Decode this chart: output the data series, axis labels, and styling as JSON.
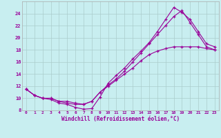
{
  "bg_color": "#c8eef0",
  "grid_color": "#aacccc",
  "line_color": "#990099",
  "xlim": [
    -0.5,
    23.5
  ],
  "ylim": [
    8,
    26
  ],
  "yticks": [
    8,
    10,
    12,
    14,
    16,
    18,
    20,
    22,
    24
  ],
  "xticks": [
    0,
    1,
    2,
    3,
    4,
    5,
    6,
    7,
    8,
    9,
    10,
    11,
    12,
    13,
    14,
    15,
    16,
    17,
    18,
    19,
    20,
    21,
    22,
    23
  ],
  "xlabel": "Windchill (Refroidissement éolien,°C)",
  "line1_x": [
    0,
    1,
    2,
    3,
    4,
    5,
    6,
    7,
    8,
    9,
    10,
    11,
    12,
    13,
    14,
    15,
    16,
    17,
    18,
    19,
    20,
    21,
    22,
    23
  ],
  "line1_y": [
    11.5,
    10.5,
    10.0,
    9.8,
    9.2,
    9.0,
    8.5,
    8.2,
    8.3,
    10.2,
    12.5,
    13.8,
    15.0,
    16.5,
    17.8,
    19.2,
    21.0,
    23.0,
    25.0,
    24.2,
    23.0,
    21.0,
    19.0,
    18.5
  ],
  "line2_x": [
    0,
    1,
    2,
    3,
    4,
    5,
    6,
    7,
    8,
    9,
    10,
    11,
    12,
    13,
    14,
    15,
    16,
    17,
    18,
    19,
    20,
    21,
    22,
    23
  ],
  "line2_y": [
    11.5,
    10.5,
    10.0,
    10.0,
    9.5,
    9.2,
    9.0,
    9.0,
    9.5,
    11.0,
    12.2,
    13.2,
    14.5,
    16.0,
    17.5,
    19.0,
    20.5,
    22.0,
    23.5,
    24.5,
    22.5,
    20.5,
    18.5,
    18.0
  ],
  "line3_x": [
    0,
    1,
    2,
    3,
    4,
    5,
    6,
    7,
    8,
    9,
    10,
    11,
    12,
    13,
    14,
    15,
    16,
    17,
    18,
    19,
    20,
    21,
    22,
    23
  ],
  "line3_y": [
    11.5,
    10.5,
    10.0,
    10.0,
    9.5,
    9.5,
    9.2,
    9.0,
    9.5,
    11.0,
    12.0,
    13.0,
    14.0,
    15.0,
    16.2,
    17.2,
    17.8,
    18.2,
    18.5,
    18.5,
    18.5,
    18.5,
    18.2,
    18.0
  ]
}
